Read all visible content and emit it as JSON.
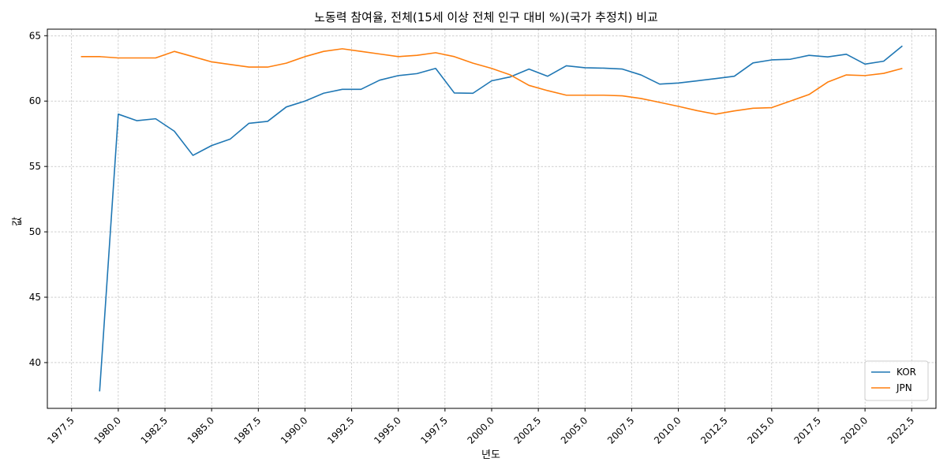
{
  "chart_data": {
    "type": "line",
    "title": "노동력 참여율, 전체(15세 이상 전체 인구 대비 %)(국가 추정치) 비교",
    "xlabel": "년도",
    "ylabel": "값",
    "xlim": [
      1976.2,
      2023.8
    ],
    "ylim": [
      36.5,
      65.5
    ],
    "xticks": [
      1977.5,
      1980.0,
      1982.5,
      1985.0,
      1987.5,
      1990.0,
      1992.5,
      1995.0,
      1997.5,
      2000.0,
      2002.5,
      2005.0,
      2007.5,
      2010.0,
      2012.5,
      2015.0,
      2017.5,
      2020.0,
      2022.5
    ],
    "xtick_labels": [
      "1977.5",
      "1980.0",
      "1982.5",
      "1985.0",
      "1987.5",
      "1990.0",
      "1992.5",
      "1995.0",
      "1997.5",
      "2000.0",
      "2002.5",
      "2005.0",
      "2007.5",
      "2010.0",
      "2012.5",
      "2015.0",
      "2017.5",
      "2020.0",
      "2022.5"
    ],
    "yticks": [
      40,
      45,
      50,
      55,
      60,
      65
    ],
    "ytick_labels": [
      "40",
      "45",
      "50",
      "55",
      "60",
      "65"
    ],
    "grid": true,
    "legend_position": "bottom-right",
    "series": [
      {
        "name": "KOR",
        "color": "#1f77b4",
        "x": [
          1979,
          1980,
          1981,
          1982,
          1983,
          1984,
          1985,
          1986,
          1987,
          1988,
          1989,
          1990,
          1991,
          1992,
          1993,
          1994,
          1995,
          1996,
          1997,
          1998,
          1999,
          2000,
          2001,
          2002,
          2003,
          2004,
          2005,
          2006,
          2007,
          2008,
          2009,
          2010,
          2011,
          2012,
          2013,
          2014,
          2015,
          2016,
          2017,
          2018,
          2019,
          2020,
          2021,
          2022
        ],
        "values": [
          37.8,
          59.0,
          58.5,
          58.65,
          57.7,
          55.85,
          56.6,
          57.1,
          58.3,
          58.45,
          59.55,
          60.0,
          60.6,
          60.9,
          60.9,
          61.6,
          61.95,
          62.1,
          62.5,
          60.62,
          60.6,
          61.55,
          61.85,
          62.45,
          61.9,
          62.7,
          62.55,
          62.52,
          62.45,
          62.0,
          61.3,
          61.38,
          61.55,
          61.72,
          61.9,
          62.92,
          63.15,
          63.2,
          63.5,
          63.38,
          63.58,
          62.83,
          63.05,
          64.22
        ]
      },
      {
        "name": "JPN",
        "color": "#ff7f0e",
        "x": [
          1978,
          1979,
          1980,
          1981,
          1982,
          1983,
          1984,
          1985,
          1986,
          1987,
          1988,
          1989,
          1990,
          1991,
          1992,
          1993,
          1994,
          1995,
          1996,
          1997,
          1998,
          1999,
          2000,
          2001,
          2002,
          2003,
          2004,
          2005,
          2006,
          2007,
          2008,
          2009,
          2010,
          2011,
          2012,
          2013,
          2014,
          2015,
          2016,
          2017,
          2018,
          2019,
          2020,
          2021,
          2022
        ],
        "values": [
          63.4,
          63.4,
          63.3,
          63.3,
          63.3,
          63.8,
          63.4,
          63.0,
          62.8,
          62.6,
          62.6,
          62.9,
          63.4,
          63.8,
          64.0,
          63.8,
          63.6,
          63.4,
          63.5,
          63.7,
          63.4,
          62.9,
          62.5,
          62.0,
          61.2,
          60.8,
          60.45,
          60.45,
          60.45,
          60.4,
          60.2,
          59.9,
          59.6,
          59.27,
          59.0,
          59.25,
          59.45,
          59.5,
          60.0,
          60.5,
          61.45,
          62.0,
          61.95,
          62.12,
          62.5
        ]
      }
    ]
  }
}
